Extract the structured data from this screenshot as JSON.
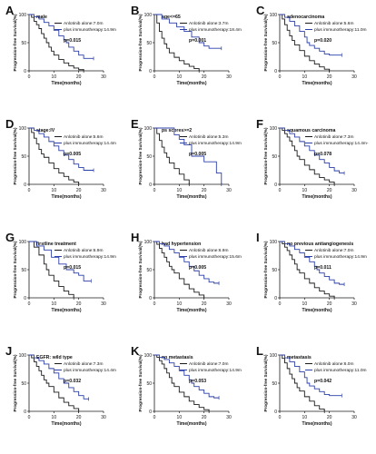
{
  "colors": {
    "alone": "#1a1a1a",
    "combo": "#2b3fa8",
    "axis": "#1a1a1a"
  },
  "chart_data": [
    {
      "panel": "A",
      "type": "line",
      "title": "male",
      "xlabel": "Time(months)",
      "ylabel": "Progression-free Survival(%)",
      "xlim": [
        0,
        30
      ],
      "ylim": [
        0,
        100
      ],
      "xticks": [
        0,
        10,
        20,
        30
      ],
      "yticks": [
        0,
        50,
        100
      ],
      "pvalue": "p=0.015",
      "series": [
        {
          "name": "Anlotinib alone:7.0m",
          "color": "#1a1a1a",
          "x": [
            0,
            1,
            2,
            3,
            4,
            5,
            6,
            7,
            8,
            9,
            10,
            12,
            14,
            16,
            18,
            20,
            22
          ],
          "y": [
            100,
            95,
            88,
            82,
            75,
            66,
            58,
            50,
            42,
            35,
            28,
            20,
            14,
            9,
            5,
            2,
            0
          ]
        },
        {
          "name": "plus immunotherapy:14.9m",
          "color": "#2b3fa8",
          "x": [
            0,
            2,
            4,
            6,
            8,
            10,
            12,
            14,
            15,
            16,
            18,
            20,
            22,
            24,
            26
          ],
          "y": [
            100,
            96,
            92,
            86,
            80,
            72,
            62,
            55,
            50,
            42,
            35,
            28,
            22,
            22,
            22
          ]
        }
      ]
    },
    {
      "panel": "B",
      "type": "line",
      "title": "age<=65",
      "xlabel": "Time(months)",
      "ylabel": "Progression-free Survival(%)",
      "xlim": [
        0,
        30
      ],
      "ylim": [
        0,
        100
      ],
      "xticks": [
        0,
        10,
        20,
        30
      ],
      "yticks": [
        0,
        50,
        100
      ],
      "pvalue": "p=0.001",
      "series": [
        {
          "name": "Anlotinib alone:3.7m",
          "color": "#1a1a1a",
          "x": [
            0,
            1,
            2,
            3,
            4,
            5,
            6,
            8,
            10,
            12,
            14,
            16,
            18
          ],
          "y": [
            100,
            85,
            70,
            58,
            48,
            40,
            32,
            24,
            18,
            12,
            8,
            4,
            0
          ]
        },
        {
          "name": "plus immunotherapy:18.4m",
          "color": "#2b3fa8",
          "x": [
            0,
            3,
            6,
            9,
            12,
            15,
            18,
            20,
            22,
            25,
            27
          ],
          "y": [
            100,
            92,
            85,
            78,
            70,
            60,
            50,
            44,
            40,
            40,
            40
          ]
        }
      ]
    },
    {
      "panel": "C",
      "type": "line",
      "title": "adenocarcinoma",
      "xlabel": "Time(months)",
      "ylabel": "Progression-free Survival(%)",
      "xlim": [
        0,
        30
      ],
      "ylim": [
        0,
        100
      ],
      "xticks": [
        0,
        10,
        20,
        30
      ],
      "yticks": [
        0,
        50,
        100
      ],
      "pvalue": "p=0.020",
      "series": [
        {
          "name": "Anlotinib alone:5.6m",
          "color": "#1a1a1a",
          "x": [
            0,
            1,
            2,
            3,
            4,
            5,
            6,
            8,
            10,
            12,
            14,
            16,
            18,
            20
          ],
          "y": [
            100,
            92,
            82,
            72,
            62,
            54,
            46,
            36,
            26,
            18,
            12,
            7,
            3,
            0
          ]
        },
        {
          "name": "plus immunotherapy:11.0m",
          "color": "#2b3fa8",
          "x": [
            0,
            2,
            4,
            6,
            8,
            10,
            11,
            12,
            14,
            16,
            18,
            20,
            22,
            25
          ],
          "y": [
            100,
            95,
            88,
            80,
            70,
            60,
            50,
            45,
            40,
            35,
            30,
            28,
            28,
            28
          ]
        }
      ]
    },
    {
      "panel": "D",
      "type": "line",
      "title": "stage:IV",
      "xlabel": "Time(months)",
      "ylabel": "Progression-free Survival(%)",
      "xlim": [
        0,
        30
      ],
      "ylim": [
        0,
        100
      ],
      "xticks": [
        0,
        10,
        20,
        30
      ],
      "yticks": [
        0,
        50,
        100
      ],
      "pvalue": "p=0.005",
      "series": [
        {
          "name": "Anlotinib alone:5.6m",
          "color": "#1a1a1a",
          "x": [
            0,
            1,
            2,
            3,
            4,
            5,
            6,
            8,
            10,
            12,
            14,
            16,
            18,
            20
          ],
          "y": [
            100,
            92,
            82,
            72,
            62,
            54,
            48,
            38,
            28,
            20,
            14,
            8,
            4,
            0
          ]
        },
        {
          "name": "plus immunotherapy:14.4m",
          "color": "#2b3fa8",
          "x": [
            0,
            2,
            4,
            6,
            8,
            10,
            12,
            14,
            16,
            18,
            20,
            22,
            24,
            26
          ],
          "y": [
            100,
            96,
            90,
            84,
            76,
            68,
            60,
            52,
            44,
            36,
            30,
            25,
            25,
            25
          ]
        }
      ]
    },
    {
      "panel": "E",
      "type": "line",
      "title": "ps scores>=2",
      "xlabel": "Time(months)",
      "ylabel": "Progression-free Survival(%)",
      "xlim": [
        0,
        30
      ],
      "ylim": [
        0,
        100
      ],
      "xticks": [
        0,
        10,
        20,
        30
      ],
      "yticks": [
        0,
        50,
        100
      ],
      "pvalue": "p=0.005",
      "series": [
        {
          "name": "Anlotinib alone:5.3m",
          "color": "#1a1a1a",
          "x": [
            0,
            1,
            2,
            3,
            4,
            5,
            6,
            8,
            10,
            12,
            14
          ],
          "y": [
            100,
            90,
            78,
            66,
            56,
            48,
            38,
            28,
            18,
            8,
            0
          ]
        },
        {
          "name": "plus immunotherapy:14.9m",
          "color": "#2b3fa8",
          "x": [
            0,
            4,
            8,
            10,
            12,
            15,
            18,
            20,
            22,
            25,
            27
          ],
          "y": [
            100,
            100,
            88,
            80,
            70,
            50,
            50,
            40,
            40,
            20,
            0
          ]
        }
      ]
    },
    {
      "panel": "F",
      "type": "line",
      "title": "squamous carcinoma",
      "xlabel": "Time(months)",
      "ylabel": "Progression-free Survival(%)",
      "xlim": [
        0,
        30
      ],
      "ylim": [
        0,
        100
      ],
      "xticks": [
        0,
        10,
        20,
        30
      ],
      "yticks": [
        0,
        50,
        100
      ],
      "pvalue": "p=0.078",
      "series": [
        {
          "name": "Anlotinib alone:7.3m",
          "color": "#1a1a1a",
          "x": [
            0,
            1,
            2,
            3,
            4,
            5,
            6,
            7,
            8,
            10,
            12,
            14,
            16,
            18,
            20,
            22
          ],
          "y": [
            100,
            96,
            90,
            84,
            77,
            68,
            60,
            50,
            44,
            34,
            26,
            18,
            12,
            8,
            4,
            0
          ]
        },
        {
          "name": "plus immunotherapy:14.4m-",
          "color": "#2b3fa8",
          "x": [
            0,
            2,
            4,
            6,
            8,
            10,
            12,
            14,
            16,
            18,
            20,
            22,
            24,
            26
          ],
          "y": [
            100,
            96,
            90,
            84,
            76,
            68,
            60,
            52,
            44,
            38,
            30,
            24,
            20,
            20
          ]
        }
      ]
    },
    {
      "panel": "G",
      "type": "line",
      "title": "firstline treatment",
      "xlabel": "Time(months)",
      "ylabel": "Progression-free Survival(%)",
      "xlim": [
        0,
        30
      ],
      "ylim": [
        0,
        100
      ],
      "xticks": [
        0,
        10,
        20,
        30
      ],
      "yticks": [
        0,
        50,
        100
      ],
      "pvalue": "p=0.015",
      "series": [
        {
          "name": "Anlotinib alone:6.9m",
          "color": "#1a1a1a",
          "x": [
            0,
            2,
            4,
            6,
            7,
            8,
            10,
            12,
            14,
            16,
            18
          ],
          "y": [
            100,
            90,
            76,
            60,
            50,
            40,
            30,
            20,
            12,
            6,
            0
          ]
        },
        {
          "name": "plus immunotherapy:14.9m",
          "color": "#2b3fa8",
          "x": [
            0,
            3,
            6,
            9,
            12,
            15,
            18,
            20,
            22,
            25
          ],
          "y": [
            100,
            92,
            85,
            72,
            60,
            50,
            44,
            40,
            30,
            30
          ]
        }
      ]
    },
    {
      "panel": "H",
      "type": "line",
      "title": "had hypertension",
      "xlabel": "Time(months)",
      "ylabel": "Progression-free Survival(%)",
      "xlim": [
        0,
        30
      ],
      "ylim": [
        0,
        100
      ],
      "xticks": [
        0,
        10,
        20,
        30
      ],
      "yticks": [
        0,
        50,
        100
      ],
      "pvalue": "p=0.005",
      "series": [
        {
          "name": "Anlotinib alone:6.9m",
          "color": "#1a1a1a",
          "x": [
            0,
            1,
            2,
            3,
            4,
            5,
            6,
            7,
            8,
            10,
            12,
            14,
            16,
            18,
            20
          ],
          "y": [
            100,
            95,
            88,
            80,
            72,
            64,
            56,
            50,
            44,
            34,
            24,
            16,
            10,
            5,
            0
          ]
        },
        {
          "name": "plus immunotherapy:15.6m",
          "color": "#2b3fa8",
          "x": [
            0,
            2,
            4,
            6,
            8,
            10,
            12,
            14,
            16,
            18,
            20,
            22,
            24,
            26
          ],
          "y": [
            100,
            96,
            92,
            86,
            80,
            72,
            64,
            56,
            48,
            40,
            34,
            28,
            26,
            26
          ]
        }
      ]
    },
    {
      "panel": "I",
      "type": "line",
      "title": "no previous antiangiogenesis",
      "xlabel": "Time(months)",
      "ylabel": "Progression-free Survival(%)",
      "xlim": [
        0,
        30
      ],
      "ylim": [
        0,
        100
      ],
      "xticks": [
        0,
        10,
        20,
        30
      ],
      "yticks": [
        0,
        50,
        100
      ],
      "pvalue": "p=0.011",
      "series": [
        {
          "name": "Anlotinib alone:7.0m",
          "color": "#1a1a1a",
          "x": [
            0,
            1,
            2,
            3,
            4,
            5,
            6,
            7,
            8,
            10,
            12,
            14,
            16,
            18,
            20,
            22
          ],
          "y": [
            100,
            96,
            90,
            84,
            76,
            68,
            60,
            50,
            44,
            34,
            26,
            18,
            12,
            7,
            3,
            0
          ]
        },
        {
          "name": "plus immunotherapy:14.9m",
          "color": "#2b3fa8",
          "x": [
            0,
            2,
            4,
            6,
            8,
            10,
            12,
            14,
            15,
            16,
            18,
            20,
            22,
            24,
            26
          ],
          "y": [
            100,
            96,
            92,
            86,
            80,
            72,
            64,
            56,
            50,
            44,
            38,
            32,
            26,
            24,
            24
          ]
        }
      ]
    },
    {
      "panel": "J",
      "type": "line",
      "title": "EGFR: wild type",
      "xlabel": "Time(months)",
      "ylabel": "Progression-free Survival(%)",
      "xlim": [
        0,
        30
      ],
      "ylim": [
        0,
        100
      ],
      "xticks": [
        0,
        10,
        20,
        30
      ],
      "yticks": [
        0,
        50,
        100
      ],
      "pvalue": "p=0.032",
      "series": [
        {
          "name": "Anlotinib alone:7.3m",
          "color": "#1a1a1a",
          "x": [
            0,
            1,
            2,
            3,
            4,
            5,
            6,
            7,
            8,
            10,
            12,
            14,
            16,
            18,
            20
          ],
          "y": [
            100,
            95,
            88,
            80,
            72,
            64,
            56,
            50,
            44,
            34,
            24,
            16,
            10,
            5,
            0
          ]
        },
        {
          "name": "plus immunotherapy:14.4m",
          "color": "#2b3fa8",
          "x": [
            0,
            2,
            4,
            6,
            8,
            10,
            12,
            14,
            16,
            18,
            20,
            22,
            24
          ],
          "y": [
            100,
            95,
            90,
            84,
            76,
            68,
            58,
            50,
            42,
            35,
            28,
            22,
            22
          ]
        }
      ]
    },
    {
      "panel": "K",
      "type": "line",
      "title": "no metastasis",
      "xlabel": "Time(months)",
      "ylabel": "Progression-free Survival(%)",
      "xlim": [
        0,
        30
      ],
      "ylim": [
        0,
        100
      ],
      "xticks": [
        0,
        10,
        20,
        30
      ],
      "yticks": [
        0,
        50,
        100
      ],
      "pvalue": "p=0.053",
      "series": [
        {
          "name": "Anlotinib alone:7.0m",
          "color": "#1a1a1a",
          "x": [
            0,
            1,
            2,
            3,
            4,
            5,
            6,
            7,
            8,
            10,
            12,
            14,
            16,
            18,
            20,
            22
          ],
          "y": [
            100,
            96,
            90,
            84,
            76,
            68,
            60,
            50,
            44,
            34,
            26,
            18,
            12,
            7,
            3,
            0
          ]
        },
        {
          "name": "plus immunotherapy:14.9m",
          "color": "#2b3fa8",
          "x": [
            0,
            2,
            4,
            6,
            8,
            10,
            12,
            14,
            15,
            16,
            18,
            20,
            22,
            24,
            26
          ],
          "y": [
            100,
            96,
            92,
            86,
            80,
            72,
            64,
            56,
            50,
            44,
            38,
            32,
            26,
            24,
            24
          ]
        }
      ]
    },
    {
      "panel": "L",
      "type": "line",
      "title": "metastasis",
      "xlabel": "Time(months)",
      "ylabel": "Progression-free Survival(%)",
      "xlim": [
        0,
        30
      ],
      "ylim": [
        0,
        100
      ],
      "xticks": [
        0,
        10,
        20,
        30
      ],
      "yticks": [
        0,
        50,
        100
      ],
      "pvalue": "p=0.042",
      "series": [
        {
          "name": "Anlotinib alone:6.0m",
          "color": "#1a1a1a",
          "x": [
            0,
            1,
            2,
            3,
            4,
            5,
            6,
            7,
            8,
            10,
            12,
            14,
            16,
            18
          ],
          "y": [
            100,
            94,
            86,
            76,
            66,
            58,
            50,
            42,
            36,
            26,
            18,
            10,
            4,
            0
          ]
        },
        {
          "name": "plus immunotherapy:11.0m",
          "color": "#2b3fa8",
          "x": [
            0,
            2,
            4,
            6,
            8,
            10,
            11,
            12,
            14,
            16,
            18,
            20,
            22,
            25
          ],
          "y": [
            100,
            95,
            88,
            80,
            70,
            60,
            50,
            45,
            40,
            35,
            30,
            28,
            28,
            28
          ]
        }
      ]
    }
  ]
}
